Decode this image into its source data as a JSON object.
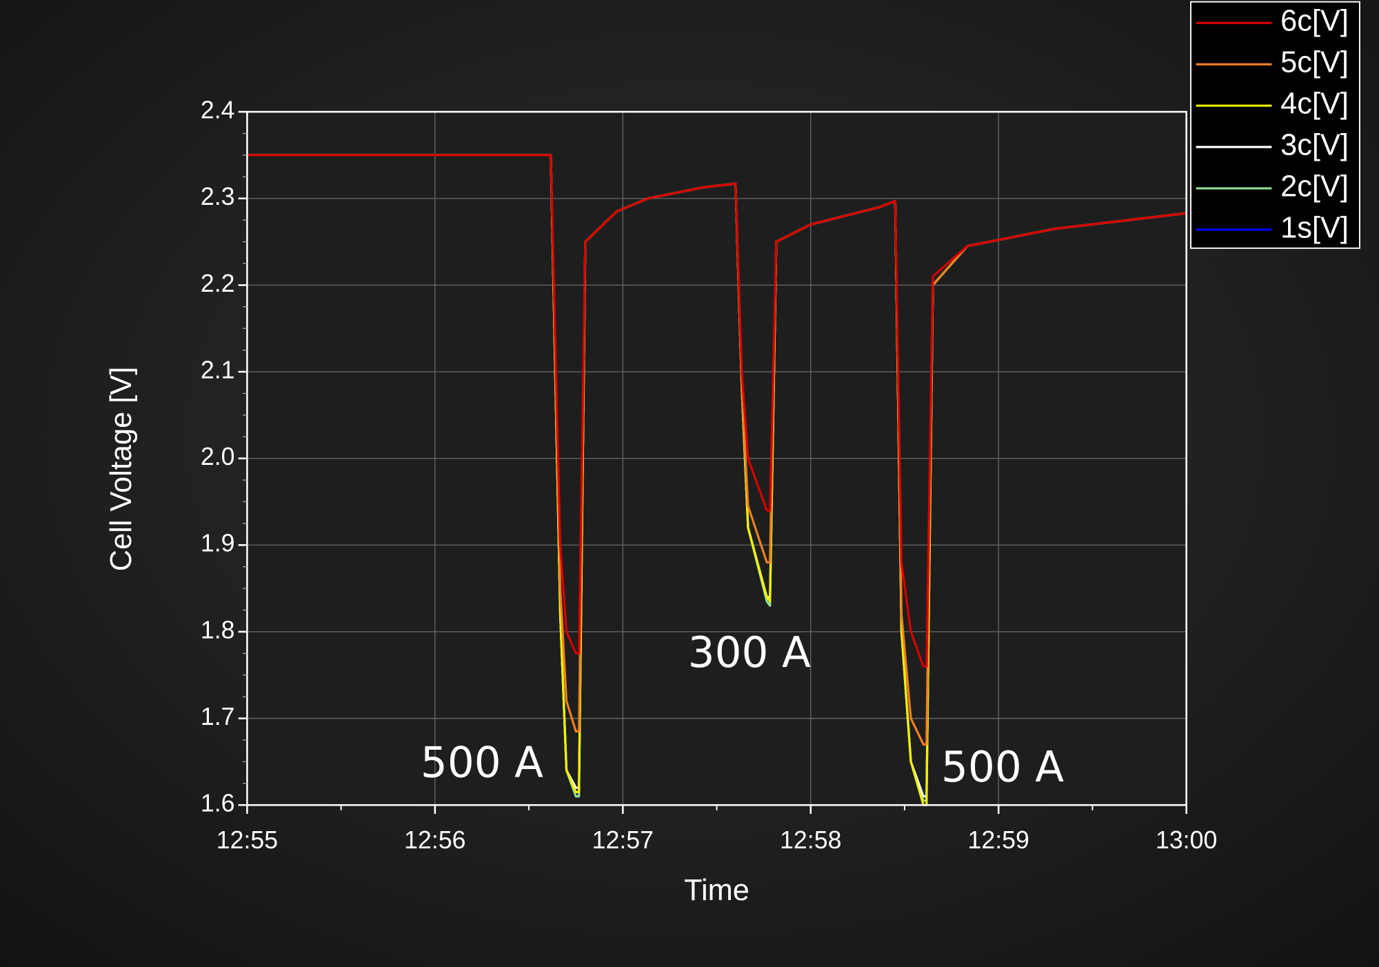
{
  "chart_data": {
    "type": "line",
    "x_label": "Time",
    "y_label": "Cell Voltage [V]",
    "x": [
      "12:55:00",
      "12:56:37",
      "12:56:40",
      "12:56:42",
      "12:56:45",
      "12:56:46",
      "12:56:48",
      "12:56:58",
      "12:57:08",
      "12:57:26",
      "12:57:36",
      "12:57:38",
      "12:57:40",
      "12:57:46",
      "12:57:47",
      "12:57:49",
      "12:58:00",
      "12:58:22",
      "12:58:27",
      "12:58:29",
      "12:58:32",
      "12:58:36",
      "12:58:37",
      "12:58:39",
      "12:58:50",
      "12:59:18",
      "13:00:00"
    ],
    "series": [
      {
        "name": "1s[V]",
        "color": "#0000ff",
        "values": [
          2.35,
          2.35,
          1.82,
          1.64,
          1.615,
          1.615,
          2.25,
          2.285,
          2.3,
          2.313,
          2.317,
          2.08,
          1.92,
          1.84,
          1.835,
          2.25,
          2.27,
          2.29,
          2.297,
          1.8,
          1.65,
          1.6,
          1.6,
          2.2,
          2.245,
          2.265,
          2.283
        ]
      },
      {
        "name": "2c[V]",
        "color": "#90e090",
        "values": [
          2.35,
          2.35,
          1.82,
          1.64,
          1.61,
          1.61,
          2.25,
          2.285,
          2.3,
          2.313,
          2.317,
          2.08,
          1.92,
          1.835,
          1.83,
          2.25,
          2.27,
          2.29,
          2.297,
          1.8,
          1.65,
          1.605,
          1.605,
          2.2,
          2.245,
          2.265,
          2.283
        ]
      },
      {
        "name": "3c[V]",
        "color": "#ffffff",
        "values": [
          2.35,
          2.35,
          1.82,
          1.64,
          1.62,
          1.62,
          2.25,
          2.285,
          2.3,
          2.313,
          2.317,
          2.08,
          1.92,
          1.84,
          1.84,
          2.25,
          2.27,
          2.29,
          2.297,
          1.8,
          1.65,
          1.61,
          1.61,
          2.2,
          2.245,
          2.265,
          2.283
        ]
      },
      {
        "name": "4c[V]",
        "color": "#f0f000",
        "values": [
          2.35,
          2.35,
          1.82,
          1.64,
          1.615,
          1.615,
          2.25,
          2.285,
          2.3,
          2.313,
          2.317,
          2.08,
          1.92,
          1.84,
          1.835,
          2.25,
          2.27,
          2.29,
          2.297,
          1.8,
          1.65,
          1.6,
          1.6,
          2.2,
          2.245,
          2.265,
          2.283
        ]
      },
      {
        "name": "5c[V]",
        "color": "#f08020",
        "values": [
          2.35,
          2.35,
          1.85,
          1.72,
          1.685,
          1.685,
          2.25,
          2.285,
          2.3,
          2.313,
          2.317,
          2.08,
          1.945,
          1.88,
          1.88,
          2.25,
          2.27,
          2.29,
          2.297,
          1.82,
          1.7,
          1.67,
          1.67,
          2.2,
          2.245,
          2.265,
          2.283
        ]
      },
      {
        "name": "6c[V]",
        "color": "#d80000",
        "values": [
          2.35,
          2.35,
          1.9,
          1.8,
          1.775,
          1.775,
          2.25,
          2.285,
          2.3,
          2.313,
          2.317,
          2.1,
          2.0,
          1.94,
          1.94,
          2.25,
          2.27,
          2.29,
          2.297,
          1.88,
          1.8,
          1.76,
          1.76,
          2.21,
          2.245,
          2.265,
          2.283
        ]
      }
    ],
    "xlim": [
      "12:55",
      "13:00"
    ],
    "xticks": [
      "12:55",
      "12:56",
      "12:57",
      "12:58",
      "12:59",
      "13:00"
    ],
    "ylim": [
      1.6,
      2.4
    ],
    "yticks": [
      1.6,
      1.7,
      1.8,
      1.9,
      {
        "value": 2.0,
        "label": "2.0"
      },
      2.1,
      2.2,
      2.3,
      2.4
    ],
    "grid": true,
    "legend": "top-right",
    "annotations": [
      "500 A",
      "300 A",
      "500 A"
    ]
  }
}
